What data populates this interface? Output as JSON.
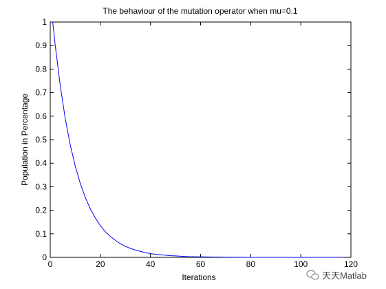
{
  "chart_data": {
    "type": "line",
    "title": "The behaviour of the mutation operator when mu=0.1",
    "xlabel": "Iterations",
    "ylabel": "Population in Percentage",
    "xlim": [
      0,
      120
    ],
    "ylim": [
      0,
      1
    ],
    "xticks": [
      0,
      20,
      40,
      60,
      80,
      100,
      120
    ],
    "yticks": [
      0,
      0.1,
      0.2,
      0.3,
      0.4,
      0.5,
      0.6,
      0.7,
      0.8,
      0.9,
      1
    ],
    "grid": false,
    "legend": "none",
    "series": [
      {
        "color": "#0000ff",
        "x": [
          1,
          2,
          4,
          6,
          8,
          10,
          12,
          14,
          16,
          18,
          20,
          22,
          24,
          26,
          28,
          30,
          32,
          34,
          36,
          38,
          40,
          42,
          44,
          46,
          48,
          50,
          55,
          60,
          70,
          80,
          90,
          100,
          110,
          117
        ],
        "y": [
          1.0,
          0.9,
          0.729,
          0.59,
          0.478,
          0.387,
          0.314,
          0.254,
          0.206,
          0.167,
          0.135,
          0.109,
          0.089,
          0.072,
          0.058,
          0.047,
          0.038,
          0.031,
          0.025,
          0.02,
          0.016,
          0.013,
          0.011,
          0.009,
          0.007,
          0.006,
          0.003,
          0.002,
          0.001,
          0.0,
          0.0,
          0.0,
          0.0,
          0.0
        ]
      }
    ]
  },
  "watermark": {
    "text": "天天Matlab",
    "icon": "wechat-icon"
  }
}
